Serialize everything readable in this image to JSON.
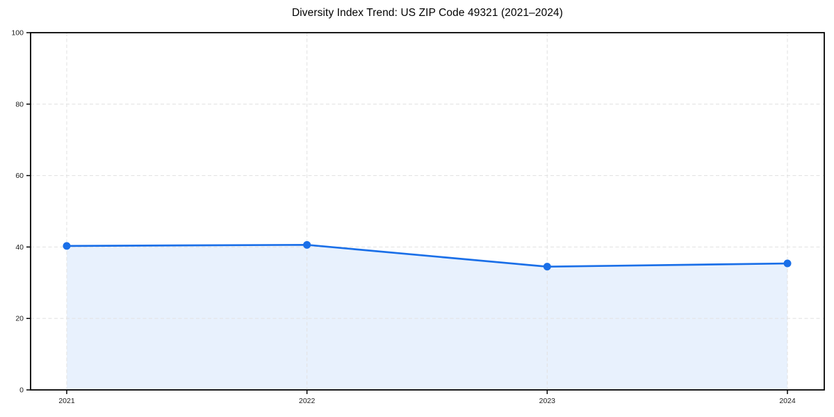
{
  "chart_data": {
    "type": "area",
    "title": "Diversity Index Trend: US ZIP Code 49321 (2021–2024)",
    "x": [
      "2021",
      "2022",
      "2023",
      "2024"
    ],
    "series": [
      {
        "name": "Diversity Index",
        "values": [
          40.3,
          40.6,
          34.5,
          35.4
        ]
      }
    ],
    "xlabel": "",
    "ylabel": "",
    "ylim": [
      0,
      100
    ],
    "yticks": [
      0,
      20,
      40,
      60,
      80,
      100
    ],
    "grid": true,
    "grid_style": "dashed",
    "legend": "none",
    "marker": "circle",
    "colors": {
      "line": "#1a6fe8",
      "marker": "#1a6fe8",
      "fill": "#e8f1fd",
      "grid": "#e3e3e3",
      "axis": "#000000",
      "tick_label": "#1a1a1a",
      "title": "#000000",
      "background": "#ffffff"
    }
  }
}
